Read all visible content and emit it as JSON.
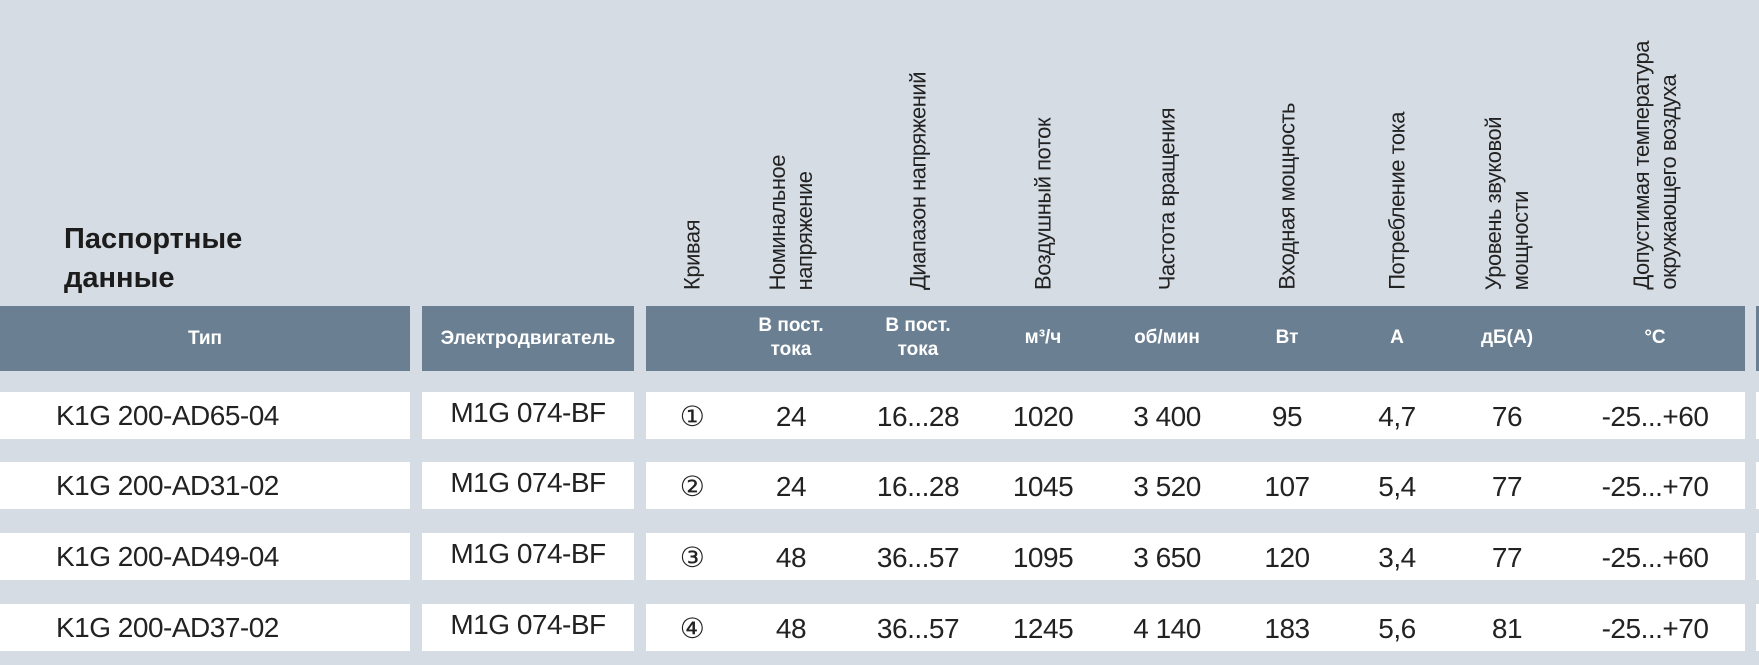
{
  "header": {
    "title": [
      "Паспортные",
      "данные"
    ]
  },
  "table": {
    "fixed_headers": [
      "Тип",
      "Электродвигатель"
    ],
    "columns": [
      {
        "label": [
          "Кривая"
        ],
        "unit": []
      },
      {
        "label": [
          "Номинальное",
          "напряжение"
        ],
        "unit": [
          "В пост.",
          "тока"
        ]
      },
      {
        "label": [
          "Диапазон напряжений"
        ],
        "unit": [
          "В пост.",
          "тока"
        ]
      },
      {
        "label": [
          "Воздушный поток"
        ],
        "unit": [
          "м³/ч"
        ]
      },
      {
        "label": [
          "Частота вращения"
        ],
        "unit": [
          "об/мин"
        ]
      },
      {
        "label": [
          "Входная мощность"
        ],
        "unit": [
          "Вт"
        ]
      },
      {
        "label": [
          "Потребление тока"
        ],
        "unit": [
          "А"
        ]
      },
      {
        "label": [
          "Уровень звуковой",
          "мощности"
        ],
        "unit": [
          "дБ(А)"
        ]
      },
      {
        "label": [
          "Допустимая температура",
          "окружающего воздуха"
        ],
        "unit": [
          "°C"
        ]
      }
    ],
    "rows": [
      {
        "type": "K1G 200-AD65-04",
        "motor": "M1G 074-BF",
        "values": [
          "①",
          "24",
          "16...28",
          "1020",
          "3 400",
          "95",
          "4,7",
          "76",
          "-25...+60"
        ]
      },
      {
        "type": "K1G 200-AD31-02",
        "motor": "M1G 074-BF",
        "values": [
          "②",
          "24",
          "16...28",
          "1045",
          "3 520",
          "107",
          "5,4",
          "77",
          "-25...+70"
        ]
      },
      {
        "type": "K1G 200-AD49-04",
        "motor": "M1G 074-BF",
        "values": [
          "③",
          "48",
          "36...57",
          "1095",
          "3 650",
          "120",
          "3,4",
          "77",
          "-25...+60"
        ]
      },
      {
        "type": "K1G 200-AD37-02",
        "motor": "M1G 074-BF",
        "values": [
          "④",
          "48",
          "36...57",
          "1245",
          "4 140",
          "183",
          "5,6",
          "81",
          "-25...+70"
        ]
      }
    ]
  }
}
